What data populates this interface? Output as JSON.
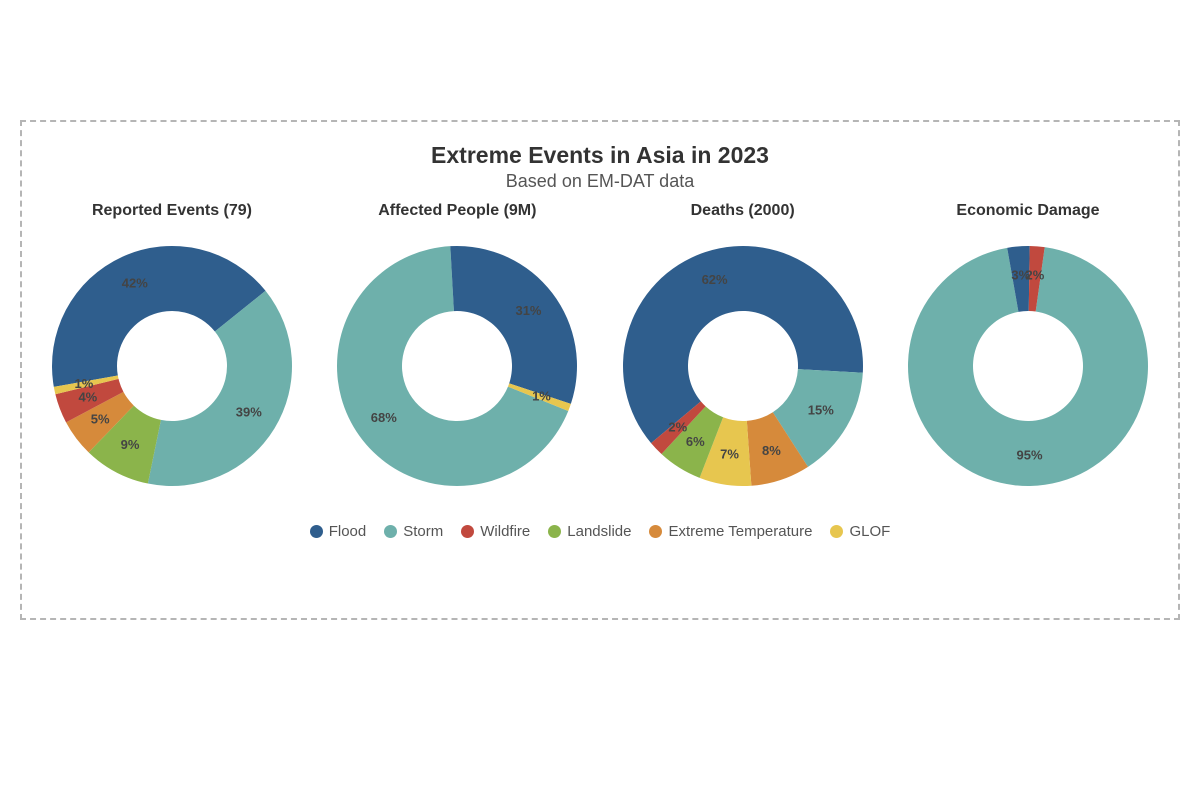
{
  "title": "Extreme Events in Asia in 2023",
  "subtitle": "Based on EM-DAT data",
  "background_color": "#ffffff",
  "border_color": "#b5b5b5",
  "text_color": "#333333",
  "label_color": "#444444",
  "categories": [
    {
      "key": "flood",
      "label": "Flood",
      "color": "#2f5e8d"
    },
    {
      "key": "storm",
      "label": "Storm",
      "color": "#6eb0ab"
    },
    {
      "key": "wildfire",
      "label": "Wildfire",
      "color": "#c1493e"
    },
    {
      "key": "landslide",
      "label": "Landslide",
      "color": "#8bb44b"
    },
    {
      "key": "exttemp",
      "label": "Extreme Temperature",
      "color": "#d68a3b"
    },
    {
      "key": "glof",
      "label": "GLOF",
      "color": "#e7c64f"
    }
  ],
  "donut": {
    "outer_radius": 120,
    "inner_radius": 55,
    "label_radius": 90,
    "svg_size": 280
  },
  "charts": [
    {
      "title": "Reported Events (79)",
      "start_angle": -100,
      "slices": [
        {
          "key": "flood",
          "value": 42,
          "show_label": true
        },
        {
          "key": "storm",
          "value": 39,
          "show_label": true
        },
        {
          "key": "landslide",
          "value": 9,
          "show_label": true
        },
        {
          "key": "exttemp",
          "value": 5,
          "show_label": true
        },
        {
          "key": "wildfire",
          "value": 4,
          "show_label": true
        },
        {
          "key": "glof",
          "value": 1,
          "show_label": true
        }
      ]
    },
    {
      "title": "Affected People (9M)",
      "start_angle": 112,
      "slices": [
        {
          "key": "storm",
          "value": 68,
          "show_label": true
        },
        {
          "key": "flood",
          "value": 31,
          "show_label": true
        },
        {
          "key": "glof",
          "value": 1,
          "show_label": true
        }
      ]
    },
    {
      "title": "Deaths (2000)",
      "start_angle": -130,
      "slices": [
        {
          "key": "flood",
          "value": 62,
          "show_label": true
        },
        {
          "key": "storm",
          "value": 15,
          "show_label": true
        },
        {
          "key": "exttemp",
          "value": 8,
          "show_label": true
        },
        {
          "key": "glof",
          "value": 7,
          "show_label": true
        },
        {
          "key": "landslide",
          "value": 6,
          "show_label": true
        },
        {
          "key": "wildfire",
          "value": 2,
          "show_label": true
        }
      ]
    },
    {
      "title": "Economic Damage",
      "start_angle": 8,
      "slices": [
        {
          "key": "storm",
          "value": 95,
          "show_label": true
        },
        {
          "key": "flood",
          "value": 3,
          "show_label": true
        },
        {
          "key": "wildfire",
          "value": 2,
          "show_label": true
        }
      ]
    }
  ]
}
